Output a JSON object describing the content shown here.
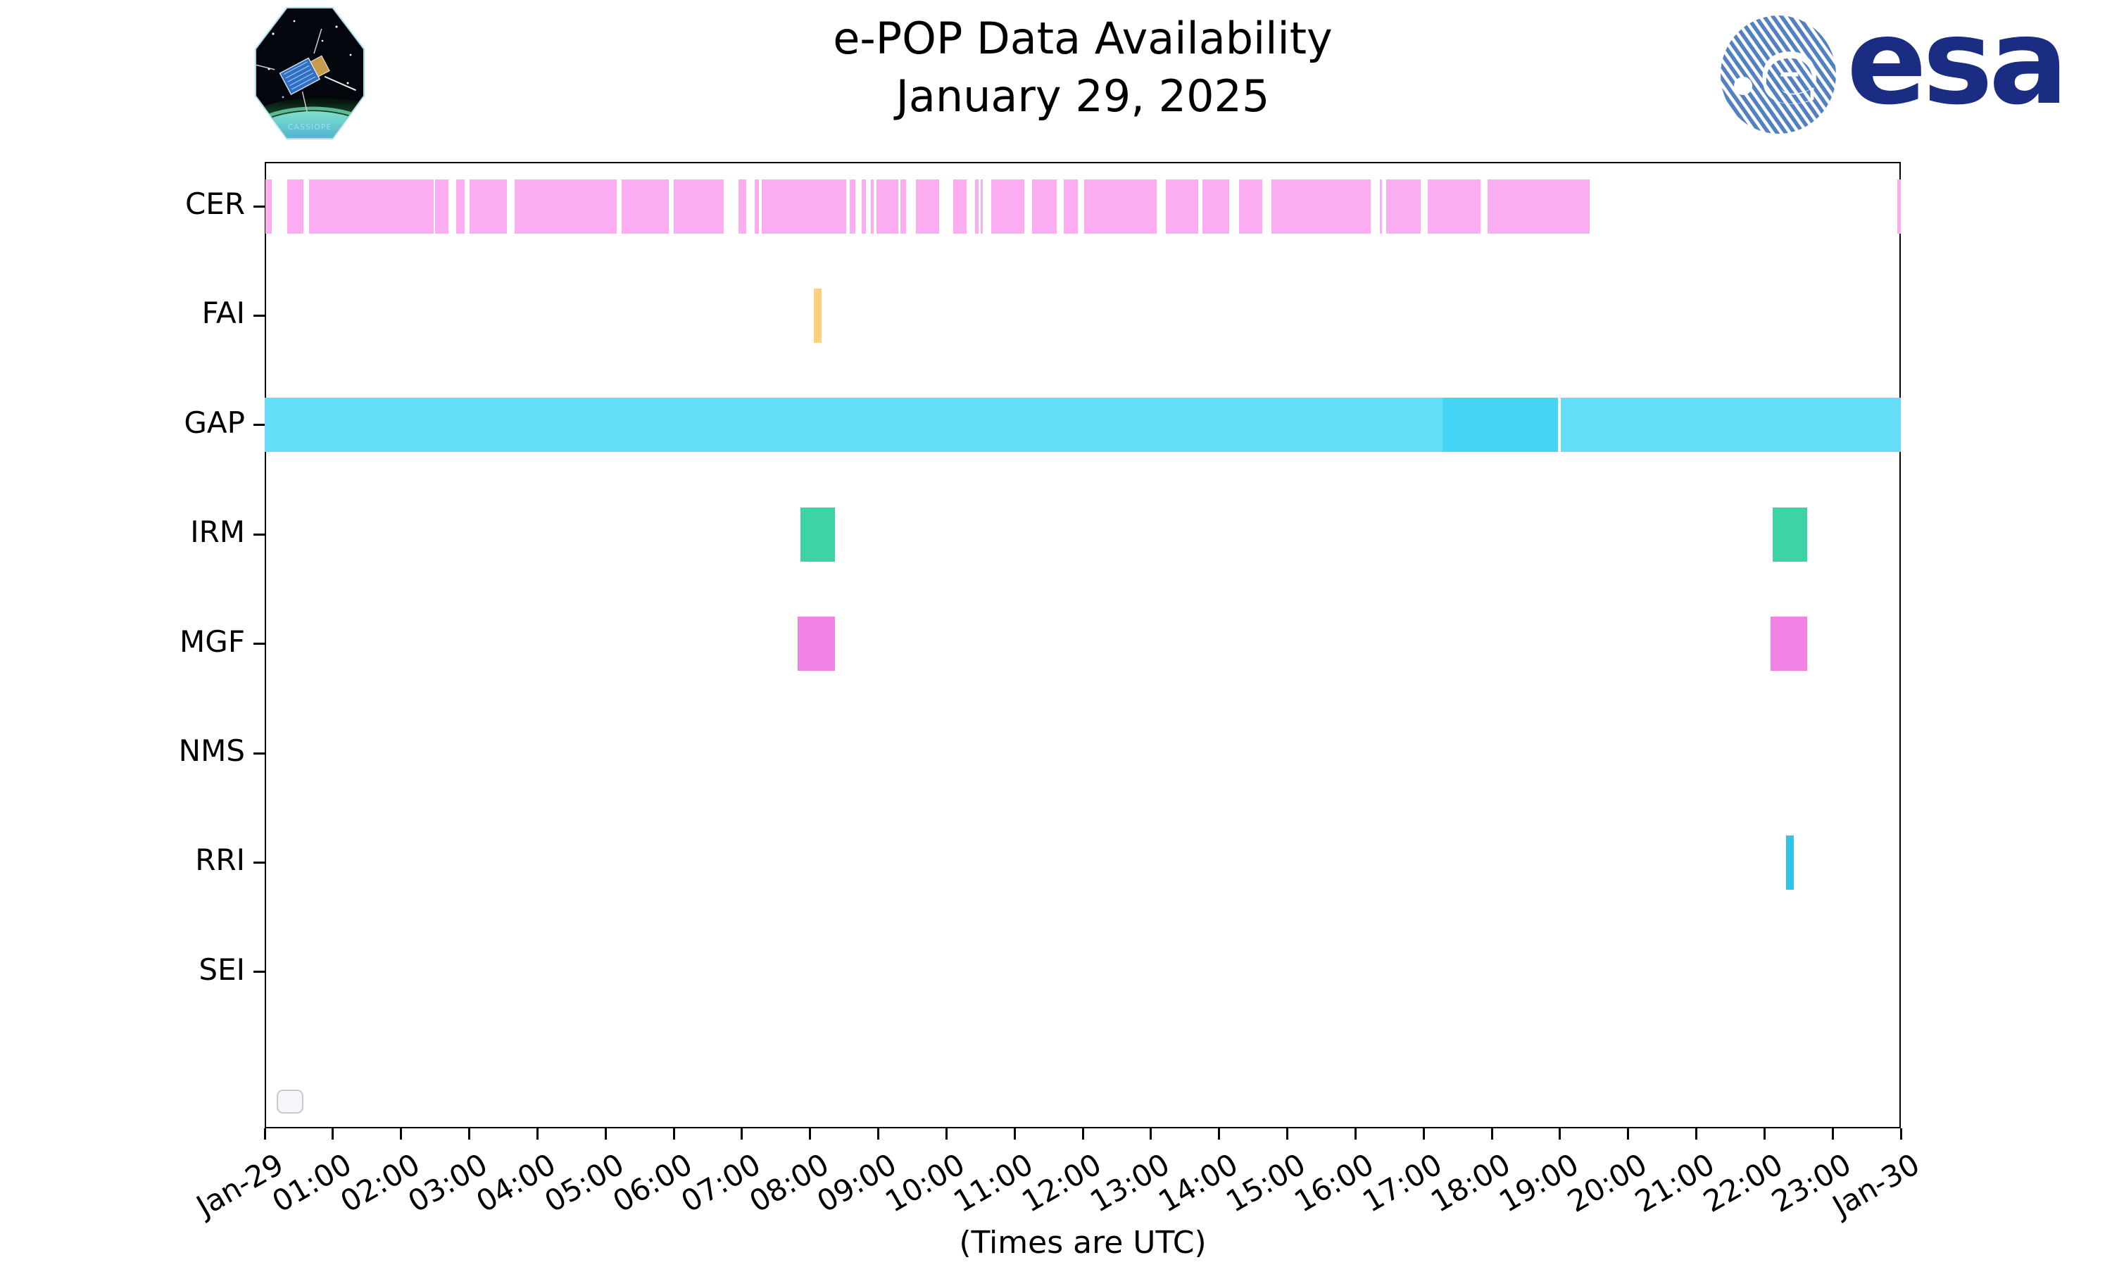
{
  "header": {
    "title": "e-POP Data Availability",
    "subtitle": "January 29, 2025"
  },
  "branding": {
    "esa_wordmark": "esa",
    "mission_patch_label": "CASSIOPE"
  },
  "chart_data": {
    "type": "timeline",
    "title": "e-POP Data Availability",
    "subtitle": "January 29, 2025",
    "xlabel": "(Times are UTC)",
    "axis": {
      "x_start": "Jan-29 00:00 UTC",
      "x_end": "Jan-30 00:00 UTC",
      "hours_span": 24,
      "tick_labels": [
        "Jan-29",
        "01:00",
        "02:00",
        "03:00",
        "04:00",
        "05:00",
        "06:00",
        "07:00",
        "08:00",
        "09:00",
        "10:00",
        "11:00",
        "12:00",
        "13:00",
        "14:00",
        "15:00",
        "16:00",
        "17:00",
        "18:00",
        "19:00",
        "20:00",
        "21:00",
        "22:00",
        "23:00",
        "Jan-30"
      ],
      "grid": false,
      "legend": "empty-stub"
    },
    "rows": [
      {
        "label": "CER",
        "color": "#fcadf2",
        "segments": [
          {
            "start": 0.01,
            "end": 0.1
          },
          {
            "start": 0.33,
            "end": 0.57
          },
          {
            "start": 0.65,
            "end": 2.48
          },
          {
            "start": 2.5,
            "end": 2.7
          },
          {
            "start": 2.81,
            "end": 2.93
          },
          {
            "start": 3.01,
            "end": 3.55
          },
          {
            "start": 3.67,
            "end": 5.16
          },
          {
            "start": 5.24,
            "end": 5.93
          },
          {
            "start": 6.0,
            "end": 6.73
          },
          {
            "start": 6.95,
            "end": 7.06
          },
          {
            "start": 7.19,
            "end": 7.25
          },
          {
            "start": 7.29,
            "end": 8.53
          },
          {
            "start": 8.58,
            "end": 8.66
          },
          {
            "start": 8.76,
            "end": 8.82
          },
          {
            "start": 8.89,
            "end": 8.93
          },
          {
            "start": 8.97,
            "end": 9.29
          },
          {
            "start": 9.33,
            "end": 9.41
          },
          {
            "start": 9.55,
            "end": 9.89
          },
          {
            "start": 10.1,
            "end": 10.3
          },
          {
            "start": 10.42,
            "end": 10.47
          },
          {
            "start": 10.5,
            "end": 10.53
          },
          {
            "start": 10.66,
            "end": 11.14
          },
          {
            "start": 11.26,
            "end": 11.62
          },
          {
            "start": 11.72,
            "end": 11.93
          },
          {
            "start": 12.02,
            "end": 13.08
          },
          {
            "start": 13.22,
            "end": 13.69
          },
          {
            "start": 13.76,
            "end": 14.15
          },
          {
            "start": 14.29,
            "end": 14.63
          },
          {
            "start": 14.77,
            "end": 16.22
          },
          {
            "start": 16.36,
            "end": 16.39
          },
          {
            "start": 16.45,
            "end": 16.96
          },
          {
            "start": 17.06,
            "end": 17.84
          },
          {
            "start": 17.94,
            "end": 19.44
          },
          {
            "start": 23.95,
            "end": 24.0
          }
        ]
      },
      {
        "label": "FAI",
        "color": "#fbd180",
        "segments": [
          {
            "start": 8.06,
            "end": 8.17
          }
        ]
      },
      {
        "label": "GAP",
        "color": "#63ddf8",
        "segments": [
          {
            "start": 0.0,
            "end": 17.28
          },
          {
            "start": 17.28,
            "end": 18.97,
            "color": "#47d5f6"
          },
          {
            "start": 19.01,
            "end": 24.0
          }
        ]
      },
      {
        "label": "IRM",
        "color": "#3ed3a6",
        "segments": [
          {
            "start": 7.86,
            "end": 8.37
          },
          {
            "start": 22.12,
            "end": 22.63
          }
        ]
      },
      {
        "label": "MGF",
        "color": "#f083e3",
        "segments": [
          {
            "start": 7.82,
            "end": 8.37
          },
          {
            "start": 22.09,
            "end": 22.63
          }
        ]
      },
      {
        "label": "NMS",
        "color": "#cccccc",
        "segments": []
      },
      {
        "label": "RRI",
        "color": "#2fc4e7",
        "segments": [
          {
            "start": 22.32,
            "end": 22.43
          }
        ]
      },
      {
        "label": "SEI",
        "color": "#cccccc",
        "segments": []
      }
    ]
  }
}
